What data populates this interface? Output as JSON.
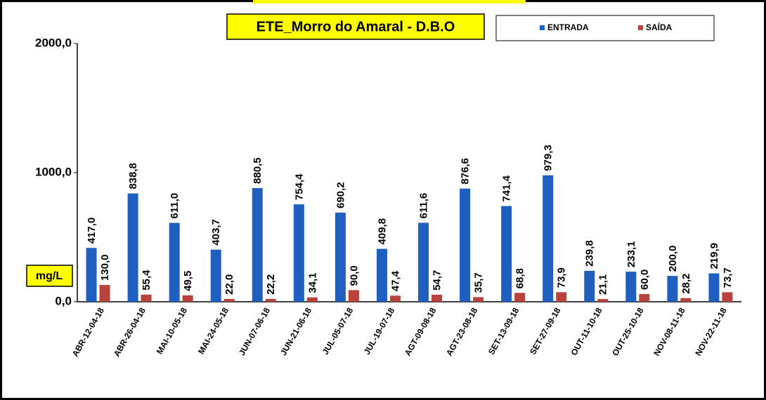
{
  "chart_data": {
    "type": "bar",
    "title": "ETE_Morro do Amaral - D.B.O",
    "y_label": "mg/L",
    "categories": [
      "ABR-12-04-18",
      "ABR-26-04-18",
      "MAI-10-05-18",
      "MAI-24-05-18",
      "JUN-07-06-18",
      "JUN-21-06-18",
      "JUL-05-07-18",
      "JUL-19-07-18",
      "AGT-09-08-18",
      "AGT-23-08-18",
      "SET-13-09-18",
      "SET-27-09-18",
      "OUT-11-10-18",
      "OUT-25-10-18",
      "NOV-08-11-18",
      "NOV-22-11-18"
    ],
    "series": [
      {
        "name": "ENTRADA",
        "color": "#1f5fbf",
        "values": [
          417.0,
          838.8,
          611.0,
          403.7,
          880.5,
          754.4,
          690.2,
          409.8,
          611.6,
          876.6,
          741.4,
          979.3,
          239.8,
          233.1,
          200.0,
          219.9
        ],
        "value_labels": [
          "417,0",
          "838,8",
          "611,0",
          "403,7",
          "880,5",
          "754,4",
          "690,2",
          "409,8",
          "611,6",
          "876,6",
          "741,4",
          "979,3",
          "239,8",
          "233,1",
          "200,0",
          "219,9"
        ]
      },
      {
        "name": "SAÍDA",
        "color": "#b8433c",
        "values": [
          130.0,
          55.4,
          49.5,
          22.0,
          22.2,
          34.1,
          90.0,
          47.4,
          54.7,
          35.7,
          68.8,
          73.9,
          21.1,
          60.0,
          28.2,
          73.7
        ],
        "value_labels": [
          "130,0",
          "55,4",
          "49,5",
          "22,0",
          "22,2",
          "34,1",
          "90,0",
          "47,4",
          "54,7",
          "35,7",
          "68,8",
          "73,9",
          "21,1",
          "60,0",
          "28,2",
          "73,7"
        ]
      }
    ],
    "ylim": [
      0,
      2000
    ],
    "yticks": [
      {
        "value": 0,
        "label": "0,0"
      },
      {
        "value": 1000,
        "label": "1000,0"
      },
      {
        "value": 2000,
        "label": "2000,0"
      }
    ],
    "grid": false
  }
}
